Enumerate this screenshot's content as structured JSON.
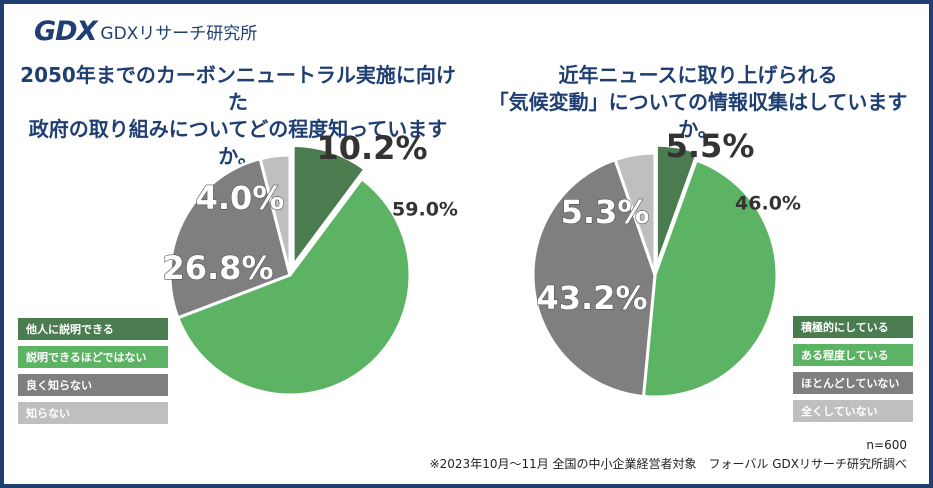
{
  "header": {
    "logo_mark": "GDX",
    "logo_text": "GDXリサーチ研究所"
  },
  "colors": {
    "dark_green": "#4a7c4f",
    "green": "#5db364",
    "gray": "#7f7f7f",
    "light_gray": "#bfbfbf",
    "title_blue": "#1f3f73"
  },
  "chart_data": [
    {
      "type": "pie",
      "title_lines": [
        "2050年までのカーボンニュートラル実施に向けた",
        "政府の取り組みについてどの程度知っていますか。"
      ],
      "slices": [
        {
          "label": "他人に説明できる",
          "value": 10.2,
          "value_label": "10.2%"
        },
        {
          "label": "説明できるほどではない",
          "value": 59.0,
          "value_label": "59.0%"
        },
        {
          "label": "良く知らない",
          "value": 26.8,
          "value_label": "26.8%"
        },
        {
          "label": "知らない",
          "value": 4.0,
          "value_label": "4.0%"
        }
      ]
    },
    {
      "type": "pie",
      "title_lines": [
        "近年ニュースに取り上げられる",
        "「気候変動」についての情報収集はしていますか。"
      ],
      "slices": [
        {
          "label": "積極的にしている",
          "value": 5.5,
          "value_label": "5.5%"
        },
        {
          "label": "ある程度している",
          "value": 46.0,
          "value_label": "46.0%"
        },
        {
          "label": "ほとんどしていない",
          "value": 43.2,
          "value_label": "43.2%"
        },
        {
          "label": "全くしていない",
          "value": 5.3,
          "value_label": "5.3%"
        }
      ]
    }
  ],
  "footer": {
    "sample_size": "n=600",
    "source": "※2023年10月～11月 全国の中小企業経営者対象　フォーバル GDXリサーチ研究所調べ"
  }
}
